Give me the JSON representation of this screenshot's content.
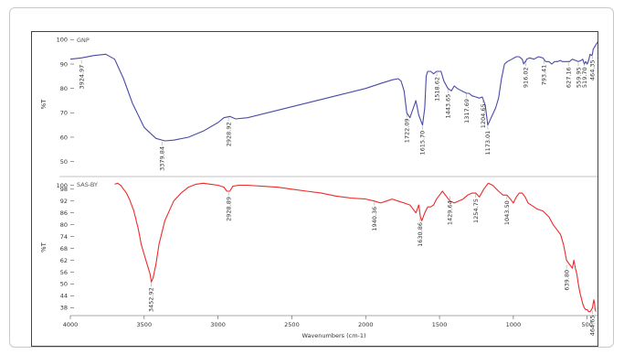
{
  "chart_data": [
    {
      "type": "line",
      "title": "",
      "series": [
        {
          "name": "GNP",
          "color": "#4a4aa8",
          "x": [
            4000,
            3925,
            3840,
            3760,
            3700,
            3640,
            3580,
            3500,
            3420,
            3360,
            3300,
            3200,
            3100,
            3000,
            2960,
            2920,
            2880,
            2800,
            2600,
            2400,
            2200,
            2000,
            1900,
            1820,
            1780,
            1760,
            1740,
            1722,
            1700,
            1660,
            1640,
            1615,
            1600,
            1590,
            1580,
            1560,
            1540,
            1520,
            1490,
            1470,
            1443,
            1420,
            1400,
            1380,
            1350,
            1317,
            1300,
            1280,
            1254,
            1230,
            1210,
            1190,
            1173,
            1150,
            1120,
            1100,
            1080,
            1060,
            1040,
            1010,
            980,
            960,
            940,
            930,
            920,
            916,
            910,
            890,
            860,
            830,
            800,
            780,
            760,
            740,
            720,
            700,
            680,
            670,
            660,
            640,
            620,
            600,
            580,
            560,
            540,
            530,
            520,
            510,
            500,
            490,
            480,
            470,
            464,
            460,
            450,
            440,
            430
          ],
          "y": [
            92,
            92.5,
            93.5,
            94,
            92,
            84,
            74,
            64,
            59.5,
            58.5,
            58.8,
            60,
            62.5,
            66,
            68,
            68.5,
            67.5,
            68,
            71,
            74,
            77,
            80,
            82,
            83.5,
            84,
            83,
            79,
            70,
            68,
            75,
            69,
            65,
            72,
            85,
            87,
            87,
            86,
            87,
            87,
            83,
            80,
            79,
            81,
            80,
            79,
            78,
            78,
            77,
            76.5,
            76,
            76.5,
            73,
            65,
            68,
            72,
            76,
            84,
            90,
            91,
            92,
            93,
            93,
            92,
            90,
            91,
            91,
            92,
            92.5,
            92,
            93,
            92.5,
            91,
            91,
            90,
            91,
            91,
            91.5,
            91,
            91,
            91,
            91,
            92,
            91.5,
            91,
            91.5,
            92,
            90,
            91,
            90,
            91.5,
            94,
            93.5,
            94,
            96,
            97,
            98,
            99
          ]
        }
      ],
      "yticks": [
        50,
        60,
        70,
        80,
        90,
        100
      ],
      "ylabel": "%T",
      "ylim": [
        45,
        102
      ],
      "peak_labels": [
        "3924.97",
        "3379.84",
        "2928.92",
        "1722.09",
        "1615.70",
        "1518.62",
        "1443.65",
        "1317.69",
        "1204.65",
        "1173.01",
        "916.02",
        "793.41",
        "627.16",
        "559.95",
        "519.70",
        "464.35"
      ],
      "peak_x": [
        3924.97,
        3379.84,
        2928.92,
        1722.09,
        1615.7,
        1518.62,
        1443.65,
        1317.69,
        1204.65,
        1173.01,
        916.02,
        793.41,
        627.16,
        559.95,
        519.7,
        464.35
      ],
      "peak_y": [
        92,
        58.5,
        68.5,
        70,
        65,
        87,
        80,
        78,
        76,
        65,
        91,
        92,
        91,
        91,
        91,
        94
      ]
    },
    {
      "type": "line",
      "title": "",
      "series": [
        {
          "name": "SAS-BY",
          "color": "#ee2a2a",
          "x": [
            3700,
            3680,
            3660,
            3640,
            3620,
            3600,
            3570,
            3540,
            3520,
            3500,
            3480,
            3460,
            3452,
            3440,
            3420,
            3400,
            3360,
            3300,
            3250,
            3200,
            3150,
            3100,
            3050,
            3000,
            2960,
            2940,
            2920,
            2900,
            2860,
            2800,
            2700,
            2600,
            2500,
            2400,
            2300,
            2200,
            2100,
            2000,
            1940,
            1900,
            1860,
            1820,
            1780,
            1740,
            1700,
            1680,
            1660,
            1640,
            1630,
            1620,
            1600,
            1580,
            1560,
            1540,
            1520,
            1500,
            1480,
            1460,
            1429,
            1400,
            1370,
            1340,
            1310,
            1280,
            1254,
            1230,
            1200,
            1170,
            1140,
            1100,
            1070,
            1043,
            1020,
            1000,
            980,
            960,
            940,
            920,
            900,
            880,
            860,
            840,
            800,
            760,
            730,
            700,
            680,
            660,
            640,
            620,
            600,
            590,
            580,
            570,
            560,
            550,
            540,
            530,
            520,
            510,
            500,
            490,
            480,
            470,
            464,
            460,
            455,
            450,
            446,
            440
          ],
          "y": [
            100.5,
            101,
            100,
            98,
            96,
            93,
            87,
            78,
            70,
            65,
            60,
            55,
            51,
            53,
            60,
            70,
            82,
            92,
            96,
            99,
            100.5,
            101,
            100.5,
            100,
            99,
            97,
            97,
            99.5,
            100,
            100,
            99.5,
            99,
            98,
            97,
            96,
            94.5,
            93.5,
            93,
            92,
            91,
            92,
            93,
            92,
            91,
            90,
            88,
            86,
            90,
            84,
            82,
            86,
            89,
            89,
            90,
            93,
            95,
            97,
            95,
            92,
            91,
            92,
            93,
            95,
            96,
            96,
            94,
            98,
            101,
            100,
            97,
            95,
            95,
            93,
            91,
            94,
            96,
            96,
            94,
            91,
            90,
            89,
            88,
            87,
            84,
            80,
            77,
            75,
            70,
            62,
            60,
            58,
            62,
            58,
            55,
            50,
            46,
            43,
            40,
            38,
            37,
            37,
            36,
            36,
            37,
            38,
            40,
            42,
            40,
            37,
            36
          ]
        }
      ],
      "yticks": [
        38,
        44,
        50,
        56,
        62,
        68,
        74,
        80,
        86,
        92,
        98,
        100
      ],
      "ylabel": "%T",
      "ylim": [
        34,
        103
      ],
      "peak_labels": [
        "3452.92",
        "2928.89",
        "1940.36",
        "1630.86",
        "1429.64",
        "1254.75",
        "1043.50",
        "639.80",
        "464.65"
      ],
      "peak_x": [
        3452.92,
        2928.89,
        1940.36,
        1630.86,
        1429.64,
        1254.75,
        1043.5,
        639.8,
        464.65
      ],
      "peak_y": [
        51,
        97,
        92,
        84,
        95,
        96,
        95,
        60,
        37
      ]
    }
  ],
  "ytick_labels_top": [
    "50",
    "60",
    "70",
    "80",
    "90",
    "100"
  ],
  "ytick_labels_bottom": [
    "38",
    "44",
    "50",
    "56",
    "62",
    "68",
    "74",
    "80",
    "86",
    "92",
    "98",
    "100"
  ],
  "x_ticks": [
    4000,
    3500,
    3000,
    2500,
    2000,
    1500,
    1000,
    500
  ],
  "x_tick_labels": [
    "4000",
    "3500",
    "3000",
    "2500",
    "2000",
    "1500",
    "1000",
    "500"
  ],
  "xlabel": "Wavenumbers (cm-1)",
  "xlim": [
    4000,
    430
  ],
  "ylabel_top": "%T",
  "ylabel_bottom": "%T",
  "series_name_top": "GNP",
  "series_name_bottom": "SAS-BY"
}
